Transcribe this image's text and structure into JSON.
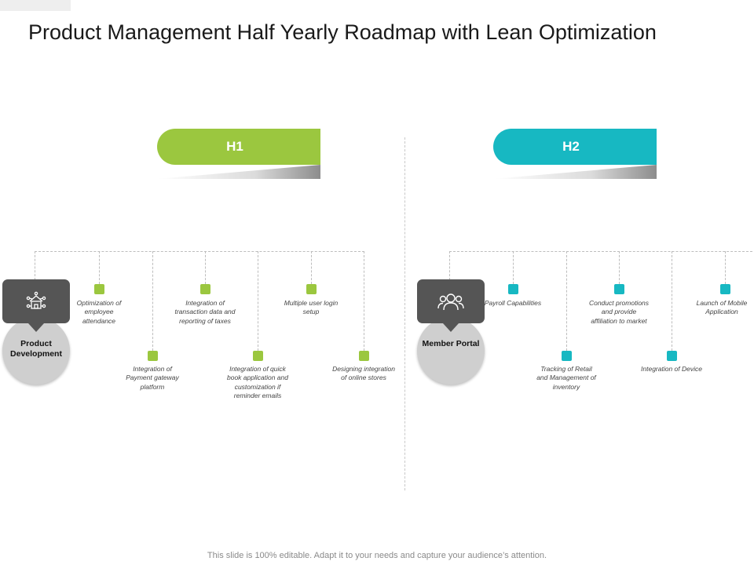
{
  "slide": {
    "title": "Product Management Half Yearly Roadmap with Lean Optimization",
    "footer": "This slide is 100% editable. Adapt it to your needs and capture your audience’s attention."
  },
  "colors": {
    "green": "#9BC73F",
    "teal": "#17B8C2",
    "hub_dark": "#555555",
    "hub_circle": "#CFCFCF"
  },
  "phases": [
    {
      "label": "H1",
      "hub": {
        "label": "Product Development",
        "icon": "house-network-icon"
      },
      "items": [
        {
          "text": "Optimization of employee attendance"
        },
        {
          "text": "Integration of Payment gateway platform"
        },
        {
          "text": "Integration of transaction data and reporting of taxes"
        },
        {
          "text": "Integration of quick book application and customization if reminder emails"
        },
        {
          "text": "Multiple user login setup"
        },
        {
          "text": "Designing integration of online stores"
        }
      ]
    },
    {
      "label": "H2",
      "hub": {
        "label": "Member Portal",
        "icon": "users-group-icon"
      },
      "items": [
        {
          "text": "Payroll Capabilities"
        },
        {
          "text": "Tracking of Retail and Management of inventory"
        },
        {
          "text": "Conduct promotions and provide affiliation to market"
        },
        {
          "text": "Integration of Device"
        },
        {
          "text": "Launch of Mobile Application"
        }
      ]
    }
  ]
}
